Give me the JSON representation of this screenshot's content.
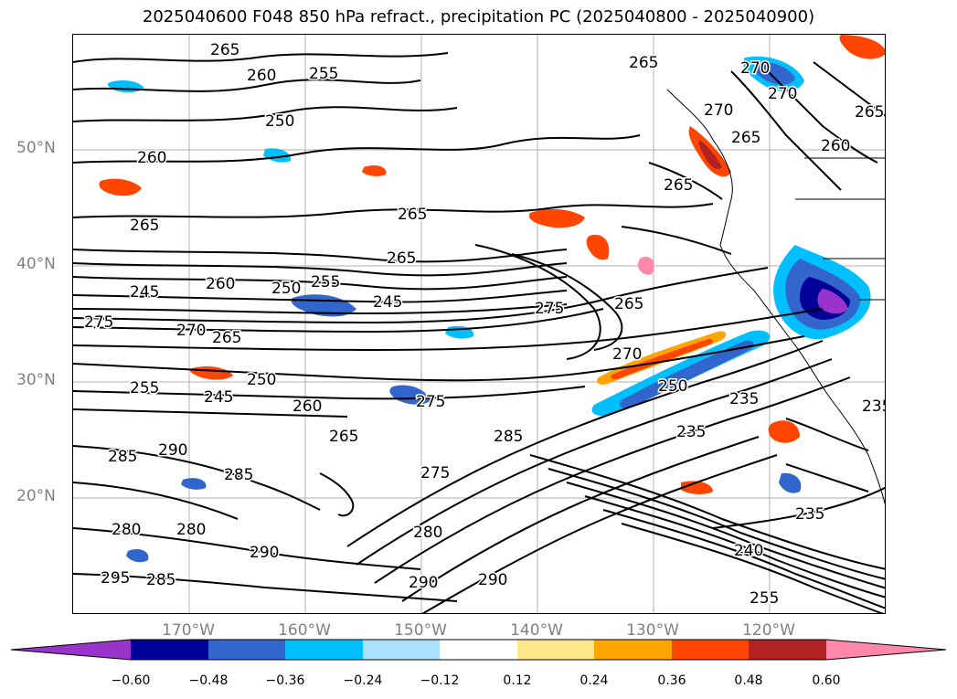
{
  "title": "2025040600 F048 850 hPa refract., precipitation PC (2025040800 - 2025040900)",
  "axes": {
    "lat_labels": [
      "50°N",
      "40°N",
      "30°N",
      "20°N"
    ],
    "lon_labels": [
      "170°W",
      "160°W",
      "150°W",
      "140°W",
      "130°W",
      "120°W"
    ]
  },
  "contours": {
    "color": "#000000",
    "labels": [
      "265",
      "260",
      "255",
      "250",
      "260",
      "265",
      "265",
      "265",
      "245",
      "260",
      "250",
      "255",
      "245",
      "275",
      "270",
      "265",
      "255",
      "250",
      "245",
      "260",
      "275",
      "265",
      "285",
      "285",
      "290",
      "285",
      "280",
      "280",
      "290",
      "295",
      "285",
      "290",
      "280",
      "290",
      "270",
      "275",
      "265",
      "275",
      "250",
      "235",
      "235",
      "240",
      "235",
      "255",
      "270",
      "265",
      "265",
      "270",
      "270",
      "265",
      "235",
      "265",
      "260"
    ]
  },
  "precip_levels": {
    "colors": [
      "#9933CC",
      "#000099",
      "#3366CC",
      "#00BFFF",
      "#ADDFFF",
      "#FFFFFF",
      "#FFE88C",
      "#FFA500",
      "#FF4500",
      "#B22222",
      "#FF88AA"
    ],
    "tick_labels": [
      "−0.60",
      "−0.48",
      "−0.36",
      "−0.24",
      "−0.12",
      "0.12",
      "0.24",
      "0.36",
      "0.48",
      "0.60"
    ]
  }
}
